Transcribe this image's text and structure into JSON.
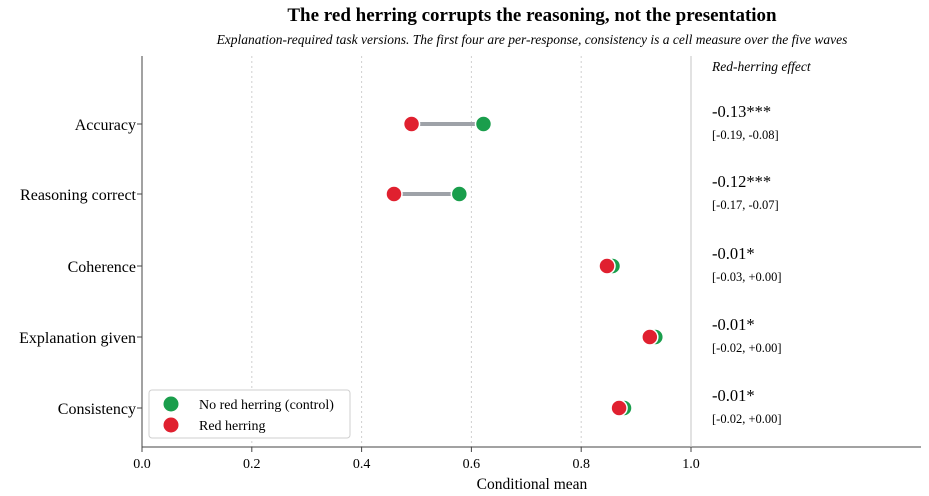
{
  "chart_data": {
    "type": "dumbbell",
    "title": "The red herring corrupts the reasoning, not the presentation",
    "subtitle": "Explanation-required task versions. The first four are per-response, consistency is a cell measure over the five waves",
    "xlabel": "Conditional mean",
    "xlim": [
      0.0,
      1.42
    ],
    "xticks": [
      "0.0",
      "0.2",
      "0.4",
      "0.6",
      "0.8",
      "1.0"
    ],
    "grid": "vertical dotted",
    "categories": [
      "Accuracy",
      "Reasoning correct",
      "Coherence",
      "Explanation given",
      "Consistency"
    ],
    "series": [
      {
        "name": "No red herring (control)",
        "color": "#1a9e4c",
        "values": [
          0.622,
          0.578,
          0.857,
          0.935,
          0.878
        ]
      },
      {
        "name": "Red herring",
        "color": "#e0202f",
        "values": [
          0.491,
          0.459,
          0.847,
          0.925,
          0.869
        ]
      }
    ],
    "connector_color": "#9ea2a8",
    "effects": {
      "header": "Red-herring effect",
      "values": [
        "-0.13***",
        "-0.12***",
        "-0.01*",
        "-0.01*",
        "-0.01*"
      ],
      "ci": [
        "[-0.19, -0.08]",
        "[-0.17, -0.07]",
        "[-0.03, +0.00]",
        "[-0.02, +0.00]",
        "[-0.02, +0.00]"
      ]
    },
    "legend_position": "lower-left"
  }
}
